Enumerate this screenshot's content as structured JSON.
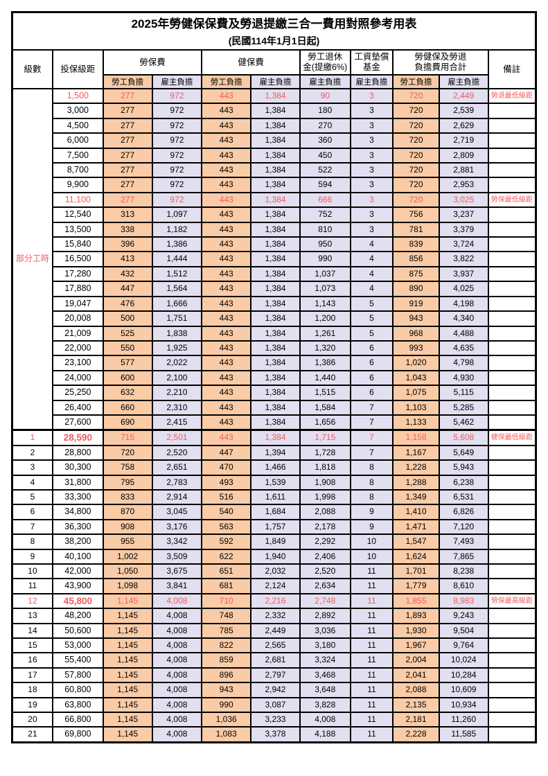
{
  "title": "2025年勞健保保費及勞退提繳三合一費用對照參考用表",
  "subtitle": "(民國114年1月1日起)",
  "colors": {
    "employee_bg": "#F9CBA6",
    "employer_bg": "#E1DFF0",
    "highlight_red": "#F25B5B",
    "border": "#000000"
  },
  "header": {
    "level": "級數",
    "bracket": "投保級距",
    "labor_insurance": "勞保費",
    "health_insurance": "健保費",
    "pension_line1": "勞工退休",
    "pension_line2": "金(提繳6%)",
    "wage_fund_line1": "工資墊償",
    "wage_fund_line2": "基金",
    "total_line1": "勞健保及勞退",
    "total_line2": "負擔費用合計",
    "remark": "備註",
    "employee": "勞工負擔",
    "employer": "雇主負擔"
  },
  "part_time_label": "部分工時",
  "rows": [
    {
      "level": "",
      "bracket": "1,500",
      "vals": [
        "277",
        "972",
        "443",
        "1,384",
        "90",
        "3",
        "720",
        "2,449"
      ],
      "note": "勞退最低級距",
      "highlight": true
    },
    {
      "level": "",
      "bracket": "3,000",
      "vals": [
        "277",
        "972",
        "443",
        "1,384",
        "180",
        "3",
        "720",
        "2,539"
      ],
      "note": ""
    },
    {
      "level": "",
      "bracket": "4,500",
      "vals": [
        "277",
        "972",
        "443",
        "1,384",
        "270",
        "3",
        "720",
        "2,629"
      ],
      "note": ""
    },
    {
      "level": "",
      "bracket": "6,000",
      "vals": [
        "277",
        "972",
        "443",
        "1,384",
        "360",
        "3",
        "720",
        "2,719"
      ],
      "note": ""
    },
    {
      "level": "",
      "bracket": "7,500",
      "vals": [
        "277",
        "972",
        "443",
        "1,384",
        "450",
        "3",
        "720",
        "2,809"
      ],
      "note": ""
    },
    {
      "level": "",
      "bracket": "8,700",
      "vals": [
        "277",
        "972",
        "443",
        "1,384",
        "522",
        "3",
        "720",
        "2,881"
      ],
      "note": ""
    },
    {
      "level": "",
      "bracket": "9,900",
      "vals": [
        "277",
        "972",
        "443",
        "1,384",
        "594",
        "3",
        "720",
        "2,953"
      ],
      "note": ""
    },
    {
      "level": "",
      "bracket": "11,100",
      "vals": [
        "277",
        "972",
        "443",
        "1,384",
        "666",
        "3",
        "720",
        "3,025"
      ],
      "note": "勞保最低級距",
      "highlight": true
    },
    {
      "level": "",
      "bracket": "12,540",
      "vals": [
        "313",
        "1,097",
        "443",
        "1,384",
        "752",
        "3",
        "756",
        "3,237"
      ],
      "note": ""
    },
    {
      "level": "",
      "bracket": "13,500",
      "vals": [
        "338",
        "1,182",
        "443",
        "1,384",
        "810",
        "3",
        "781",
        "3,379"
      ],
      "note": ""
    },
    {
      "level": "",
      "bracket": "15,840",
      "vals": [
        "396",
        "1,386",
        "443",
        "1,384",
        "950",
        "4",
        "839",
        "3,724"
      ],
      "note": ""
    },
    {
      "level": "",
      "bracket": "16,500",
      "vals": [
        "413",
        "1,444",
        "443",
        "1,384",
        "990",
        "4",
        "856",
        "3,822"
      ],
      "note": ""
    },
    {
      "level": "",
      "bracket": "17,280",
      "vals": [
        "432",
        "1,512",
        "443",
        "1,384",
        "1,037",
        "4",
        "875",
        "3,937"
      ],
      "note": ""
    },
    {
      "level": "",
      "bracket": "17,880",
      "vals": [
        "447",
        "1,564",
        "443",
        "1,384",
        "1,073",
        "4",
        "890",
        "4,025"
      ],
      "note": ""
    },
    {
      "level": "",
      "bracket": "19,047",
      "vals": [
        "476",
        "1,666",
        "443",
        "1,384",
        "1,143",
        "5",
        "919",
        "4,198"
      ],
      "note": ""
    },
    {
      "level": "",
      "bracket": "20,008",
      "vals": [
        "500",
        "1,751",
        "443",
        "1,384",
        "1,200",
        "5",
        "943",
        "4,340"
      ],
      "note": ""
    },
    {
      "level": "",
      "bracket": "21,009",
      "vals": [
        "525",
        "1,838",
        "443",
        "1,384",
        "1,261",
        "5",
        "968",
        "4,488"
      ],
      "note": ""
    },
    {
      "level": "",
      "bracket": "22,000",
      "vals": [
        "550",
        "1,925",
        "443",
        "1,384",
        "1,320",
        "6",
        "993",
        "4,635"
      ],
      "note": ""
    },
    {
      "level": "",
      "bracket": "23,100",
      "vals": [
        "577",
        "2,022",
        "443",
        "1,384",
        "1,386",
        "6",
        "1,020",
        "4,798"
      ],
      "note": ""
    },
    {
      "level": "",
      "bracket": "24,000",
      "vals": [
        "600",
        "2,100",
        "443",
        "1,384",
        "1,440",
        "6",
        "1,043",
        "4,930"
      ],
      "note": ""
    },
    {
      "level": "",
      "bracket": "25,250",
      "vals": [
        "632",
        "2,210",
        "443",
        "1,384",
        "1,515",
        "6",
        "1,075",
        "5,115"
      ],
      "note": ""
    },
    {
      "level": "",
      "bracket": "26,400",
      "vals": [
        "660",
        "2,310",
        "443",
        "1,384",
        "1,584",
        "7",
        "1,103",
        "5,285"
      ],
      "note": ""
    },
    {
      "level": "",
      "bracket": "27,600",
      "vals": [
        "690",
        "2,415",
        "443",
        "1,384",
        "1,656",
        "7",
        "1,133",
        "5,462"
      ],
      "note": ""
    },
    {
      "level": "1",
      "bracket": "28,590",
      "vals": [
        "715",
        "2,501",
        "443",
        "1,384",
        "1,715",
        "7",
        "1,158",
        "5,608"
      ],
      "note": "健保最低級距",
      "highlight": true,
      "bold": true,
      "thick_top": true
    },
    {
      "level": "2",
      "bracket": "28,800",
      "vals": [
        "720",
        "2,520",
        "447",
        "1,394",
        "1,728",
        "7",
        "1,167",
        "5,649"
      ],
      "note": ""
    },
    {
      "level": "3",
      "bracket": "30,300",
      "vals": [
        "758",
        "2,651",
        "470",
        "1,466",
        "1,818",
        "8",
        "1,228",
        "5,943"
      ],
      "note": ""
    },
    {
      "level": "4",
      "bracket": "31,800",
      "vals": [
        "795",
        "2,783",
        "493",
        "1,539",
        "1,908",
        "8",
        "1,288",
        "6,238"
      ],
      "note": ""
    },
    {
      "level": "5",
      "bracket": "33,300",
      "vals": [
        "833",
        "2,914",
        "516",
        "1,611",
        "1,998",
        "8",
        "1,349",
        "6,531"
      ],
      "note": ""
    },
    {
      "level": "6",
      "bracket": "34,800",
      "vals": [
        "870",
        "3,045",
        "540",
        "1,684",
        "2,088",
        "9",
        "1,410",
        "6,826"
      ],
      "note": ""
    },
    {
      "level": "7",
      "bracket": "36,300",
      "vals": [
        "908",
        "3,176",
        "563",
        "1,757",
        "2,178",
        "9",
        "1,471",
        "7,120"
      ],
      "note": ""
    },
    {
      "level": "8",
      "bracket": "38,200",
      "vals": [
        "955",
        "3,342",
        "592",
        "1,849",
        "2,292",
        "10",
        "1,547",
        "7,493"
      ],
      "note": ""
    },
    {
      "level": "9",
      "bracket": "40,100",
      "vals": [
        "1,002",
        "3,509",
        "622",
        "1,940",
        "2,406",
        "10",
        "1,624",
        "7,865"
      ],
      "note": ""
    },
    {
      "level": "10",
      "bracket": "42,000",
      "vals": [
        "1,050",
        "3,675",
        "651",
        "2,032",
        "2,520",
        "11",
        "1,701",
        "8,238"
      ],
      "note": ""
    },
    {
      "level": "11",
      "bracket": "43,900",
      "vals": [
        "1,098",
        "3,841",
        "681",
        "2,124",
        "2,634",
        "11",
        "1,779",
        "8,610"
      ],
      "note": ""
    },
    {
      "level": "12",
      "bracket": "45,800",
      "vals": [
        "1,145",
        "4,008",
        "710",
        "2,216",
        "2,748",
        "11",
        "1,855",
        "8,983"
      ],
      "note": "勞保最高級距",
      "highlight": true,
      "bold": true
    },
    {
      "level": "13",
      "bracket": "48,200",
      "vals": [
        "1,145",
        "4,008",
        "748",
        "2,332",
        "2,892",
        "11",
        "1,893",
        "9,243"
      ],
      "note": ""
    },
    {
      "level": "14",
      "bracket": "50,600",
      "vals": [
        "1,145",
        "4,008",
        "785",
        "2,449",
        "3,036",
        "11",
        "1,930",
        "9,504"
      ],
      "note": ""
    },
    {
      "level": "15",
      "bracket": "53,000",
      "vals": [
        "1,145",
        "4,008",
        "822",
        "2,565",
        "3,180",
        "11",
        "1,967",
        "9,764"
      ],
      "note": ""
    },
    {
      "level": "16",
      "bracket": "55,400",
      "vals": [
        "1,145",
        "4,008",
        "859",
        "2,681",
        "3,324",
        "11",
        "2,004",
        "10,024"
      ],
      "note": ""
    },
    {
      "level": "17",
      "bracket": "57,800",
      "vals": [
        "1,145",
        "4,008",
        "896",
        "2,797",
        "3,468",
        "11",
        "2,041",
        "10,284"
      ],
      "note": ""
    },
    {
      "level": "18",
      "bracket": "60,800",
      "vals": [
        "1,145",
        "4,008",
        "943",
        "2,942",
        "3,648",
        "11",
        "2,088",
        "10,609"
      ],
      "note": ""
    },
    {
      "level": "19",
      "bracket": "63,800",
      "vals": [
        "1,145",
        "4,008",
        "990",
        "3,087",
        "3,828",
        "11",
        "2,135",
        "10,934"
      ],
      "note": ""
    },
    {
      "level": "20",
      "bracket": "66,800",
      "vals": [
        "1,145",
        "4,008",
        "1,036",
        "3,233",
        "4,008",
        "11",
        "2,181",
        "11,260"
      ],
      "note": ""
    },
    {
      "level": "21",
      "bracket": "69,800",
      "vals": [
        "1,145",
        "4,008",
        "1,083",
        "3,378",
        "4,188",
        "11",
        "2,228",
        "11,585"
      ],
      "note": ""
    }
  ]
}
